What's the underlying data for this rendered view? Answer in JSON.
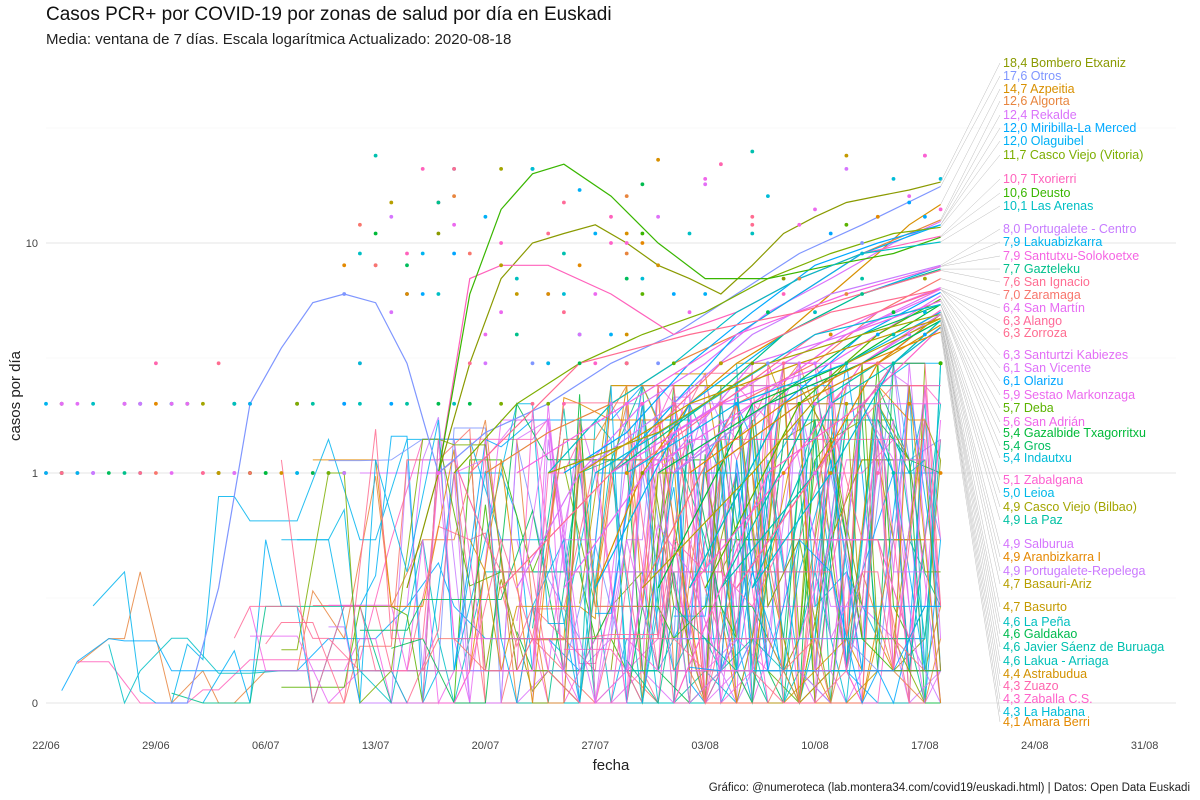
{
  "chart_data": {
    "type": "line",
    "title": "Casos PCR+ por COVID-19 por zonas de salud por día en Euskadi",
    "subtitle": "Media: ventana de 7 días. Escala logarítmica Actualizado: 2020-08-18",
    "caption": "Gráfico: @numeroteca (lab.montera34.com/covid19/euskadi.html) | Datos: Open Data Euskadi",
    "xlabel": "fecha",
    "ylabel": "casos por día",
    "y_scale": "log",
    "xlim": [
      "2020-06-22",
      "2020-09-02"
    ],
    "x_ticks": [
      "22/06",
      "29/06",
      "06/07",
      "13/07",
      "20/07",
      "27/07",
      "03/08",
      "10/08",
      "17/08",
      "24/08",
      "31/08"
    ],
    "y_ticks": [
      "0",
      "1",
      "10"
    ],
    "grid": true,
    "legend": "none (direct labels on the right)",
    "series": [
      {
        "name": "Bombero Etxaniz",
        "label": "18,4 Bombero Etxaniz",
        "color": "#8A9A00",
        "x": [
          "2020-07-15",
          "2020-07-17",
          "2020-07-19",
          "2020-07-21",
          "2020-07-23",
          "2020-07-25",
          "2020-07-27",
          "2020-07-29",
          "2020-07-31",
          "2020-08-02",
          "2020-08-04",
          "2020-08-06",
          "2020-08-08",
          "2020-08-10",
          "2020-08-12",
          "2020-08-14",
          "2020-08-16",
          "2020-08-18"
        ],
        "y": [
          0.5,
          1,
          3,
          7,
          10,
          11,
          12,
          10,
          8,
          7,
          6,
          8,
          11,
          13,
          15,
          16,
          17,
          18.4
        ]
      },
      {
        "name": "Otros",
        "label": "17,6 Otros",
        "color": "#7F96FF",
        "x": [
          "2020-06-29",
          "2020-07-01",
          "2020-07-03",
          "2020-07-05",
          "2020-07-07",
          "2020-07-09",
          "2020-07-11",
          "2020-07-13",
          "2020-07-15",
          "2020-07-17",
          "2020-07-20",
          "2020-07-24",
          "2020-07-28",
          "2020-08-01",
          "2020-08-05",
          "2020-08-09",
          "2020-08-13",
          "2020-08-18"
        ],
        "y": [
          0,
          0,
          0.5,
          2,
          3.5,
          5.5,
          6,
          5.5,
          3,
          1,
          1.5,
          2,
          3,
          4,
          6,
          9,
          12,
          17.6
        ]
      },
      {
        "name": "Azpeitia",
        "label": "14,7 Azpeitia",
        "color": "#D89000",
        "x": [
          "2020-07-27",
          "2020-07-30",
          "2020-08-02",
          "2020-08-05",
          "2020-08-08",
          "2020-08-11",
          "2020-08-14",
          "2020-08-16",
          "2020-08-18"
        ],
        "y": [
          0.5,
          1,
          2,
          3,
          4,
          6,
          9,
          12,
          14.7
        ]
      },
      {
        "name": "Algorta",
        "label": "12,6 Algorta",
        "color": "#E8853E",
        "x": [
          "2020-07-20",
          "2020-07-24",
          "2020-07-28",
          "2020-08-01",
          "2020-08-05",
          "2020-08-09",
          "2020-08-13",
          "2020-08-18"
        ],
        "y": [
          1,
          1.5,
          2,
          3,
          4,
          6,
          9,
          12.6
        ]
      },
      {
        "name": "Rekalde",
        "label": "12,4 Rekalde",
        "color": "#DA72FB",
        "x": [
          "2020-07-22",
          "2020-07-26",
          "2020-07-30",
          "2020-08-03",
          "2020-08-07",
          "2020-08-11",
          "2020-08-15",
          "2020-08-18"
        ],
        "y": [
          0.5,
          1,
          2,
          3,
          5,
          7,
          10,
          12.4
        ]
      },
      {
        "name": "Miribilla-La Merced",
        "label": "12,0 Miribilla-La Merced",
        "color": "#00A9FF",
        "x": [
          "2020-07-25",
          "2020-07-29",
          "2020-08-02",
          "2020-08-06",
          "2020-08-10",
          "2020-08-14",
          "2020-08-18"
        ],
        "y": [
          1,
          1.5,
          3,
          5,
          8,
          10,
          12
        ]
      },
      {
        "name": "Olaguibel",
        "label": "12,0 Olaguibel",
        "color": "#00B0F6",
        "x": [
          "2020-07-28",
          "2020-08-01",
          "2020-08-05",
          "2020-08-09",
          "2020-08-13",
          "2020-08-18"
        ],
        "y": [
          1,
          2,
          4,
          6,
          9,
          12
        ]
      },
      {
        "name": "Casco Viejo (Vitoria)",
        "label": "11,7 Casco Viejo (Vitoria)",
        "color": "#7CAE00",
        "x": [
          "2020-07-18",
          "2020-07-22",
          "2020-07-26",
          "2020-07-30",
          "2020-08-03",
          "2020-08-07",
          "2020-08-11",
          "2020-08-15",
          "2020-08-18"
        ],
        "y": [
          1,
          2,
          3,
          4,
          5,
          7,
          9,
          11,
          11.7
        ]
      },
      {
        "name": "Txorierri",
        "label": "10,7 Txorierri",
        "color": "#FF62BC",
        "x": [
          "2020-07-17",
          "2020-07-19",
          "2020-07-21",
          "2020-07-24",
          "2020-07-28",
          "2020-08-01",
          "2020-08-05",
          "2020-08-09",
          "2020-08-13",
          "2020-08-18"
        ],
        "y": [
          1,
          7,
          8,
          8,
          6,
          4,
          5,
          7,
          9,
          10.7
        ]
      },
      {
        "name": "Deusto",
        "label": "10,6 Deusto",
        "color": "#39B600",
        "x": [
          "2020-07-17",
          "2020-07-19",
          "2020-07-21",
          "2020-07-23",
          "2020-07-25",
          "2020-07-28",
          "2020-07-31",
          "2020-08-03",
          "2020-08-07",
          "2020-08-11",
          "2020-08-15",
          "2020-08-18"
        ],
        "y": [
          1,
          6,
          14,
          20,
          22,
          16,
          10,
          7,
          7,
          8,
          9,
          10.6
        ]
      },
      {
        "name": "Las Arenas",
        "label": "10,1 Las Arenas",
        "color": "#00BFC4",
        "x": [
          "2020-07-24",
          "2020-07-28",
          "2020-08-01",
          "2020-08-05",
          "2020-08-09",
          "2020-08-13",
          "2020-08-18"
        ],
        "y": [
          1,
          2,
          3,
          5,
          7,
          9,
          10.1
        ]
      },
      {
        "name": "Portugalete - Centro",
        "label": "8,0 Portugalete - Centro",
        "color": "#C77CFF",
        "x": [
          "2020-07-26",
          "2020-08-01",
          "2020-08-06",
          "2020-08-11",
          "2020-08-18"
        ],
        "y": [
          1,
          2,
          4,
          6,
          8
        ]
      },
      {
        "name": "Lakuabizkarra",
        "label": "7,9 Lakuabizkarra",
        "color": "#00B4EF",
        "x": [
          "2020-07-27",
          "2020-08-02",
          "2020-08-08",
          "2020-08-13",
          "2020-08-18"
        ],
        "y": [
          0.5,
          2,
          4,
          6,
          7.9
        ]
      },
      {
        "name": "Santutxu-Solokoetxe",
        "label": "7,9 Santutxu-Solokoetxe",
        "color": "#F564E3",
        "x": [
          "2020-07-22",
          "2020-07-29",
          "2020-08-05",
          "2020-08-12",
          "2020-08-18"
        ],
        "y": [
          1,
          2,
          4,
          6,
          7.9
        ]
      },
      {
        "name": "Gazteleku",
        "label": "7,7 Gazteleku",
        "color": "#00C08B",
        "x": [
          "2020-07-28",
          "2020-08-03",
          "2020-08-08",
          "2020-08-13",
          "2020-08-18"
        ],
        "y": [
          1,
          2,
          4,
          6,
          7.7
        ]
      },
      {
        "name": "San Ignacio",
        "label": "7,6 San Ignacio",
        "color": "#FF6C91",
        "x": [
          "2020-07-19",
          "2020-07-26",
          "2020-08-02",
          "2020-08-09",
          "2020-08-18"
        ],
        "y": [
          1,
          3,
          4,
          5,
          7.6
        ]
      },
      {
        "name": "Zaramaga",
        "label": "7,0 Zaramaga",
        "color": "#F8766D",
        "x": [
          "2020-07-30",
          "2020-08-05",
          "2020-08-10",
          "2020-08-14",
          "2020-08-18"
        ],
        "y": [
          0.5,
          2,
          3,
          5,
          7
        ]
      },
      {
        "name": "San Martín",
        "label": "6,4 San Martín",
        "color": "#E76BF3",
        "x": [
          "2020-07-25",
          "2020-08-01",
          "2020-08-08",
          "2020-08-14",
          "2020-08-18"
        ],
        "y": [
          0.5,
          1.5,
          3,
          5,
          6.4
        ]
      },
      {
        "name": "Alango",
        "label": "6,3 Alango",
        "color": "#FF6A98",
        "x": [
          "2020-07-29",
          "2020-08-04",
          "2020-08-10",
          "2020-08-18"
        ],
        "y": [
          1,
          2,
          4,
          6.3
        ]
      },
      {
        "name": "Zorroza",
        "label": "6,3 Zorroza",
        "color": "#FF6C90",
        "x": [
          "2020-07-21",
          "2020-07-28",
          "2020-08-04",
          "2020-08-11",
          "2020-08-18"
        ],
        "y": [
          0.5,
          1,
          3,
          5,
          6.3
        ]
      },
      {
        "name": "Santurtzi Kabiezes",
        "label": "6,3 Santurtzi Kabiezes",
        "color": "#E36EF6",
        "x": [
          "2020-08-01",
          "2020-08-06",
          "2020-08-12",
          "2020-08-18"
        ],
        "y": [
          1,
          2,
          4,
          6.3
        ]
      },
      {
        "name": "San Vicente",
        "label": "6,1 San Vicente",
        "color": "#DE71F9",
        "x": [
          "2020-07-31",
          "2020-08-06",
          "2020-08-12",
          "2020-08-18"
        ],
        "y": [
          1,
          3,
          4,
          6.1
        ]
      },
      {
        "name": "Olarizu",
        "label": "6,1 Olarizu",
        "color": "#00A5FF",
        "x": [
          "2020-08-02",
          "2020-08-08",
          "2020-08-13",
          "2020-08-18"
        ],
        "y": [
          0.5,
          2,
          4,
          6.1
        ]
      },
      {
        "name": "Sestao Markonzaga",
        "label": "5,9 Sestao Markonzaga",
        "color": "#EC69EF",
        "x": [
          "2020-07-28",
          "2020-08-04",
          "2020-08-11",
          "2020-08-18"
        ],
        "y": [
          1,
          2,
          3,
          5.9
        ]
      },
      {
        "name": "Deba",
        "label": "5,7 Deba",
        "color": "#5BB300",
        "x": [
          "2020-08-03",
          "2020-08-09",
          "2020-08-14",
          "2020-08-18"
        ],
        "y": [
          0.5,
          2,
          4,
          5.7
        ]
      },
      {
        "name": "San Adrián",
        "label": "5,6 San Adrián",
        "color": "#F066EA",
        "x": [
          "2020-07-30",
          "2020-08-06",
          "2020-08-12",
          "2020-08-18"
        ],
        "y": [
          1,
          2,
          4,
          5.6
        ]
      },
      {
        "name": "Gazalbide Txagorritxu",
        "label": "5,4 Gazalbide Txagorritxu",
        "color": "#00BA38",
        "x": [
          "2020-07-31",
          "2020-08-06",
          "2020-08-12",
          "2020-08-18"
        ],
        "y": [
          0.5,
          2,
          3,
          5.4
        ]
      },
      {
        "name": "Gros",
        "label": "5,4 Gros",
        "color": "#00BD5C",
        "x": [
          "2020-08-01",
          "2020-08-07",
          "2020-08-13",
          "2020-08-18"
        ],
        "y": [
          1,
          2,
          4,
          5.4
        ]
      },
      {
        "name": "Indautxu",
        "label": "5,4 Indautxu",
        "color": "#00BCD8",
        "x": [
          "2020-07-27",
          "2020-08-03",
          "2020-08-10",
          "2020-08-18"
        ],
        "y": [
          1,
          2,
          4,
          5.4
        ]
      },
      {
        "name": "Zabalgana",
        "label": "5,1 Zabalgana",
        "color": "#FD61D1",
        "x": [
          "2020-08-02",
          "2020-08-08",
          "2020-08-13",
          "2020-08-18"
        ],
        "y": [
          0.5,
          1,
          3,
          5.1
        ]
      },
      {
        "name": "Leioa",
        "label": "5,0 Leioa",
        "color": "#00B8E7",
        "x": [
          "2020-07-29",
          "2020-08-05",
          "2020-08-12",
          "2020-08-18"
        ],
        "y": [
          1,
          2,
          3,
          5
        ]
      },
      {
        "name": "Casco Viejo (Bilbao)",
        "label": "4,9 Casco Viejo (Bilbao)",
        "color": "#A3A500",
        "x": [
          "2020-07-24",
          "2020-07-31",
          "2020-08-07",
          "2020-08-13",
          "2020-08-18"
        ],
        "y": [
          1,
          1.5,
          3,
          4,
          4.9
        ]
      },
      {
        "name": "La Paz",
        "label": "4,9 La Paz",
        "color": "#00C1A3",
        "x": [
          "2020-08-04",
          "2020-08-10",
          "2020-08-14",
          "2020-08-18"
        ],
        "y": [
          0.5,
          2,
          3,
          4.9
        ]
      },
      {
        "name": "Salburua",
        "label": "4,9 Salburua",
        "color": "#D575FE",
        "x": [
          "2020-08-03",
          "2020-08-09",
          "2020-08-14",
          "2020-08-18"
        ],
        "y": [
          1,
          2,
          3,
          4.9
        ]
      },
      {
        "name": "Aranbizkarra I",
        "label": "4,9 Aranbizkarra I",
        "color": "#E58700",
        "x": [
          "2020-08-05",
          "2020-08-10",
          "2020-08-14",
          "2020-08-18"
        ],
        "y": [
          0.5,
          1,
          3,
          4.9
        ]
      },
      {
        "name": "Portugalete-Repelega",
        "label": "4,9 Portugalete-Repelega",
        "color": "#CB79FF",
        "x": [
          "2020-08-01",
          "2020-08-07",
          "2020-08-13",
          "2020-08-18"
        ],
        "y": [
          1,
          2,
          3,
          4.9
        ]
      },
      {
        "name": "Basauri-Ariz",
        "label": "4,7 Basauri-Ariz",
        "color": "#B79F00",
        "x": [
          "2020-07-30",
          "2020-08-06",
          "2020-08-12",
          "2020-08-18"
        ],
        "y": [
          0.5,
          1,
          3,
          4.7
        ]
      },
      {
        "name": "Basurto",
        "label": "4,7 Basurto",
        "color": "#C49A00",
        "x": [
          "2020-07-26",
          "2020-08-02",
          "2020-08-09",
          "2020-08-18"
        ],
        "y": [
          1,
          2,
          3,
          4.7
        ]
      },
      {
        "name": "La Peña",
        "label": "4,6 La Peña",
        "color": "#00BFBF",
        "x": [
          "2020-08-02",
          "2020-08-08",
          "2020-08-13",
          "2020-08-18"
        ],
        "y": [
          0.5,
          2,
          3,
          4.6
        ]
      },
      {
        "name": "Galdakao",
        "label": "4,6 Galdakao",
        "color": "#00BB4E",
        "x": [
          "2020-07-31",
          "2020-08-07",
          "2020-08-13",
          "2020-08-18"
        ],
        "y": [
          1,
          2,
          3,
          4.6
        ]
      },
      {
        "name": "Javier Sáenz de Buruaga",
        "label": "4,6 Javier Sáenz de Buruaga",
        "color": "#00C0AF",
        "x": [
          "2020-08-04",
          "2020-08-10",
          "2020-08-15",
          "2020-08-18"
        ],
        "y": [
          0.5,
          1,
          3,
          4.6
        ]
      },
      {
        "name": "Lakua - Arriaga",
        "label": "4,6 Lakua - Arriaga",
        "color": "#00C0B8",
        "x": [
          "2020-08-06",
          "2020-08-11",
          "2020-08-15",
          "2020-08-18"
        ],
        "y": [
          0.5,
          2,
          3,
          4.6
        ]
      },
      {
        "name": "Astrabudua",
        "label": "4,4 Astrabudua",
        "color": "#D39200",
        "x": [
          "2020-08-03",
          "2020-08-09",
          "2020-08-14",
          "2020-08-18"
        ],
        "y": [
          1,
          2,
          3,
          4.4
        ]
      },
      {
        "name": "Zuazo",
        "label": "4,3 Zuazo",
        "color": "#FF65AE",
        "x": [
          "2020-08-05",
          "2020-08-10",
          "2020-08-15",
          "2020-08-18"
        ],
        "y": [
          0.5,
          1,
          3,
          4.3
        ]
      },
      {
        "name": "Zaballa C.S.",
        "label": "4,3 Zaballa C.S.",
        "color": "#FF61C9",
        "x": [
          "2020-08-01",
          "2020-08-07",
          "2020-08-13",
          "2020-08-18"
        ],
        "y": [
          0,
          1,
          2,
          4.3
        ]
      },
      {
        "name": "La Habana",
        "label": "4,3 La Habana",
        "color": "#00BCD5",
        "x": [
          "2020-08-06",
          "2020-08-11",
          "2020-08-15",
          "2020-08-18"
        ],
        "y": [
          0.5,
          1,
          3,
          4.3
        ]
      },
      {
        "name": "Amara Berri",
        "label": "4,1 Amara Berri",
        "color": "#E38900",
        "x": [
          "2020-08-02",
          "2020-08-08",
          "2020-08-13",
          "2020-08-18"
        ],
        "y": [
          1,
          2,
          3,
          4.1
        ]
      }
    ]
  }
}
